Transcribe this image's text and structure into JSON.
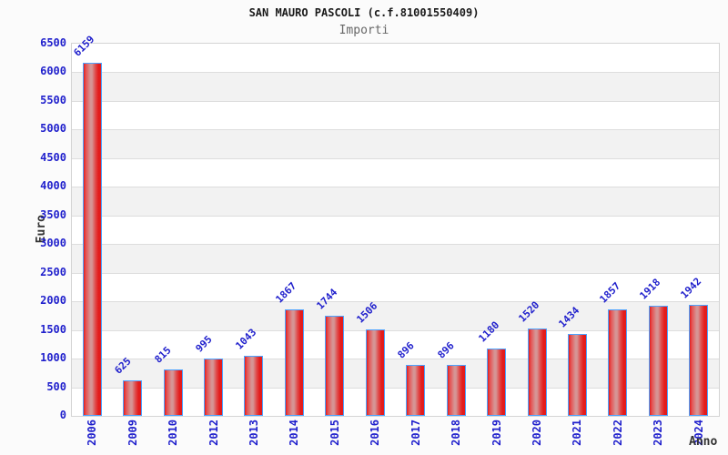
{
  "header": {
    "title": "SAN MAURO PASCOLI (c.f.81001550409)",
    "subtitle": "Importi"
  },
  "chart_data": {
    "type": "bar",
    "title": "SAN MAURO PASCOLI (c.f.81001550409)",
    "subtitle": "Importi",
    "categories": [
      "2006",
      "2009",
      "2010",
      "2012",
      "2013",
      "2014",
      "2015",
      "2016",
      "2017",
      "2018",
      "2019",
      "2020",
      "2021",
      "2022",
      "2023",
      "2024"
    ],
    "values": [
      6159,
      625,
      815,
      995,
      1043,
      1867,
      1744,
      1506,
      896,
      896,
      1180,
      1520,
      1434,
      1857,
      1918,
      1942
    ],
    "xlabel": "Anno",
    "ylabel": "Euro",
    "ylim": [
      0,
      6500
    ],
    "ytick_step": 500,
    "ytick_labels": [
      "0",
      "500",
      "1000",
      "1500",
      "2000",
      "2500",
      "3000",
      "3500",
      "4000",
      "4500",
      "5000",
      "5500",
      "6000",
      "6500"
    ],
    "grid": "horizontal-bands-alternating",
    "legend": "none",
    "colors": {
      "bar_edge_red": "#e31c1c",
      "bar_highlight": "#d69494",
      "bar_border_blue": "#4da3ff",
      "label_blue": "#1f1fcc",
      "axis_title_color": "#333333",
      "title_color": "#1a1a1a",
      "subtitle_color": "#666666",
      "band_gray": "#f2f2f2",
      "grid_line": "#dddddd",
      "plot_border": "#d4d4d4",
      "background": "#fbfbfb"
    }
  }
}
